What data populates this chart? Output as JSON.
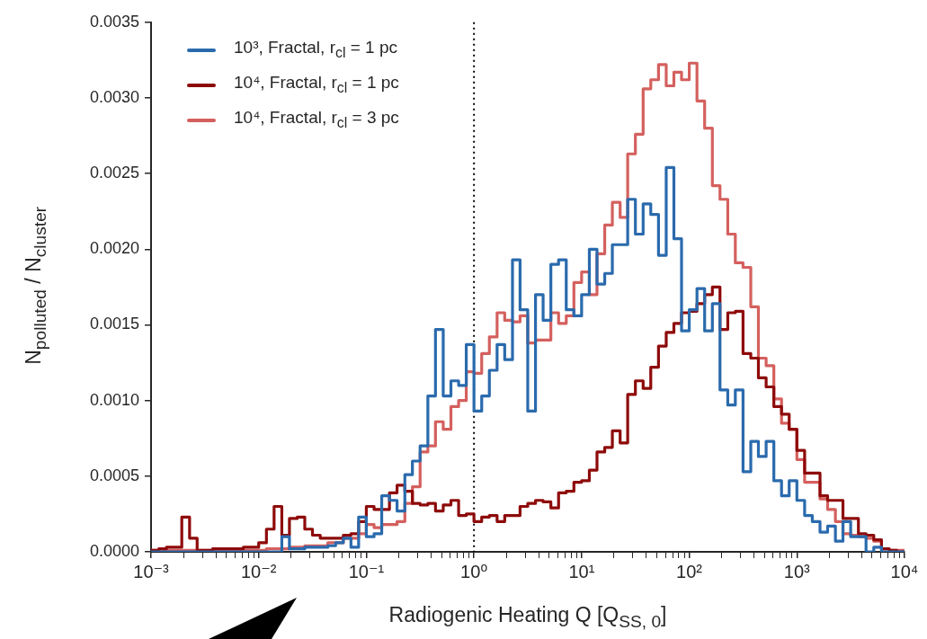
{
  "chart_data": {
    "type": "histogram",
    "xlabel": "Radiogenic Heating Q [Q$_{SS, 0}$]",
    "ylabel": "N$_{polluted}$ / N$_{cluster}$",
    "log": "x",
    "legend": "top left",
    "xlim": [
      0.001,
      10000
    ],
    "ylim": [
      0,
      0.0035
    ],
    "xticks": [
      {
        "value": 0.001,
        "label": "10⁻³"
      },
      {
        "value": 0.01,
        "label": "10⁻²"
      },
      {
        "value": 0.1,
        "label": "10⁻¹"
      },
      {
        "value": 1,
        "label": "10⁰"
      },
      {
        "value": 10,
        "label": "10¹"
      },
      {
        "value": 100,
        "label": "10²"
      },
      {
        "value": 1000,
        "label": "10³"
      },
      {
        "value": 10000,
        "label": "10⁴"
      },
      {
        "value": 0.002,
        "label": null
      },
      {
        "value": 0.003,
        "label": null
      },
      {
        "value": 0.004,
        "label": null
      },
      {
        "value": 0.005,
        "label": null
      },
      {
        "value": 0.006,
        "label": null
      },
      {
        "value": 0.007,
        "label": null
      },
      {
        "value": 0.008,
        "label": null
      },
      {
        "value": 0.009,
        "label": null
      },
      {
        "value": 0.02,
        "label": null
      },
      {
        "value": 0.03,
        "label": null
      },
      {
        "value": 0.04,
        "label": null
      },
      {
        "value": 0.05,
        "label": null
      },
      {
        "value": 0.06,
        "label": null
      },
      {
        "value": 0.07,
        "label": null
      },
      {
        "value": 0.08,
        "label": null
      },
      {
        "value": 0.09,
        "label": null
      },
      {
        "value": 0.2,
        "label": null
      },
      {
        "value": 0.3,
        "label": null
      },
      {
        "value": 0.4,
        "label": null
      },
      {
        "value": 0.5,
        "label": null
      },
      {
        "value": 0.6,
        "label": null
      },
      {
        "value": 0.7,
        "label": null
      },
      {
        "value": 0.8,
        "label": null
      },
      {
        "value": 0.9,
        "label": null
      },
      {
        "value": 2,
        "label": null
      },
      {
        "value": 3,
        "label": null
      },
      {
        "value": 4,
        "label": null
      },
      {
        "value": 5,
        "label": null
      },
      {
        "value": 6,
        "label": null
      },
      {
        "value": 7,
        "label": null
      },
      {
        "value": 8,
        "label": null
      },
      {
        "value": 9,
        "label": null
      },
      {
        "value": 20,
        "label": null
      },
      {
        "value": 30,
        "label": null
      },
      {
        "value": 40,
        "label": null
      },
      {
        "value": 50,
        "label": null
      },
      {
        "value": 60,
        "label": null
      },
      {
        "value": 70,
        "label": null
      },
      {
        "value": 80,
        "label": null
      },
      {
        "value": 90,
        "label": null
      },
      {
        "value": 200,
        "label": null
      },
      {
        "value": 300,
        "label": null
      },
      {
        "value": 400,
        "label": null
      },
      {
        "value": 500,
        "label": null
      },
      {
        "value": 600,
        "label": null
      },
      {
        "value": 700,
        "label": null
      },
      {
        "value": 800,
        "label": null
      },
      {
        "value": 900,
        "label": null
      },
      {
        "value": 2000,
        "label": null
      },
      {
        "value": 3000,
        "label": null
      },
      {
        "value": 4000,
        "label": null
      },
      {
        "value": 5000,
        "label": null
      },
      {
        "value": 6000,
        "label": null
      },
      {
        "value": 7000,
        "label": null
      },
      {
        "value": 8000,
        "label": null
      },
      {
        "value": 9000,
        "label": null
      }
    ],
    "yticks": [
      {
        "value": 0,
        "label": "0.0000"
      },
      {
        "value": 0.0005,
        "label": "0.0005"
      },
      {
        "value": 0.001,
        "label": "0.0010"
      },
      {
        "value": 0.0015,
        "label": "0.0015"
      },
      {
        "value": 0.002,
        "label": "0.0020"
      },
      {
        "value": 0.0025,
        "label": "0.0025"
      },
      {
        "value": 0.003,
        "label": "0.0030"
      },
      {
        "value": 0.0035,
        "label": "0.0035"
      }
    ],
    "ref_lines": [
      {
        "axis": "x",
        "value": 1,
        "color": "#000000",
        "line_style": "dotted"
      }
    ],
    "bins": [
      0.001,
      0.00118,
      0.00139,
      0.00164,
      0.00193,
      0.00228,
      0.00268,
      0.00316,
      0.00373,
      0.00439,
      0.00518,
      0.00611,
      0.0072,
      0.00848,
      0.01,
      0.0118,
      0.0139,
      0.0164,
      0.0193,
      0.0228,
      0.0268,
      0.0316,
      0.0373,
      0.0439,
      0.0518,
      0.0611,
      0.072,
      0.0848,
      0.1,
      0.118,
      0.139,
      0.164,
      0.193,
      0.228,
      0.268,
      0.316,
      0.373,
      0.439,
      0.518,
      0.611,
      0.72,
      0.848,
      1,
      1.18,
      1.39,
      1.64,
      1.93,
      2.28,
      2.68,
      3.16,
      3.73,
      4.39,
      5.18,
      6.11,
      7.2,
      8.48,
      10,
      11.8,
      13.9,
      16.4,
      19.3,
      22.8,
      26.8,
      31.6,
      37.3,
      43.9,
      51.8,
      61.1,
      72,
      84.8,
      100,
      118,
      139,
      164,
      193,
      228,
      268,
      316,
      373,
      439,
      518,
      611,
      720,
      848,
      1000,
      1180,
      1390,
      1640,
      1930,
      2280,
      2680,
      3160,
      3730,
      4390,
      5180,
      6110,
      7200,
      8480,
      10000
    ],
    "series": [
      {
        "name": "10³, Fractal, r$_{cl}$ = 1 pc",
        "color": "#2a6aad",
        "values": [
          0,
          0,
          0,
          0,
          0,
          0,
          0,
          0,
          0,
          0,
          0,
          0,
          0,
          0,
          0,
          0,
          0,
          0.0001,
          2e-05,
          2e-05,
          3e-05,
          3e-05,
          3e-05,
          4e-05,
          6e-05,
          9e-05,
          3e-05,
          0.00023,
          0.0001,
          0.00012,
          0.00037,
          0.00034,
          0.00027,
          0.00051,
          0.0006,
          0.0007,
          0.00103,
          0.00147,
          0.00103,
          0.00113,
          0.0011,
          0.00137,
          0.00093,
          0.00103,
          0.0012,
          0.00137,
          0.00127,
          0.00193,
          0.0016,
          0.00093,
          0.0017,
          0.00153,
          0.0019,
          0.00193,
          0.0016,
          0.00156,
          0.0017,
          0.002,
          0.00177,
          0.00184,
          0.00203,
          0.00203,
          0.00233,
          0.0021,
          0.0023,
          0.00223,
          0.00196,
          0.00254,
          0.00207,
          0.00146,
          0.0016,
          0.00174,
          0.00146,
          0.00164,
          0.00107,
          0.00097,
          0.00107,
          0.00053,
          0.00073,
          0.00063,
          0.00073,
          0.00047,
          0.00037,
          0.00047,
          0.00034,
          0.00024,
          0.0002,
          0.00013,
          0.00017,
          7e-05,
          0.0002,
          0.0001,
          0.0001,
          0,
          3e-05,
          0,
          0,
          0
        ]
      },
      {
        "name": "10⁴, Fractal, r$_{cl}$ = 1 pc",
        "color": "#8e0a0a",
        "values": [
          1e-05,
          2e-05,
          3e-05,
          3e-05,
          0.00023,
          9e-05,
          1e-05,
          1e-05,
          2e-05,
          2e-05,
          2e-05,
          2e-05,
          3e-05,
          3e-05,
          6e-05,
          0.00015,
          0.0003,
          0.00011,
          0.00022,
          0.00023,
          0.00015,
          0.00011,
          9e-05,
          9e-05,
          9e-05,
          0.00011,
          0.00012,
          0.0002,
          0.0003,
          0.00028,
          0.00028,
          0.00039,
          0.00044,
          0.0004,
          0.00032,
          0.00031,
          0.00032,
          0.00027,
          0.00031,
          0.00034,
          0.00024,
          0.00025,
          0.0002,
          0.00023,
          0.00024,
          0.0002,
          0.00024,
          0.00024,
          0.0003,
          0.00032,
          0.00034,
          0.00033,
          0.00029,
          0.00039,
          0.0004,
          0.00046,
          0.00047,
          0.00054,
          0.00066,
          0.00069,
          0.0008,
          0.00072,
          0.00104,
          0.00113,
          0.00108,
          0.00122,
          0.00136,
          0.00145,
          0.00151,
          0.00158,
          0.00159,
          0.00164,
          0.0017,
          0.00175,
          0.00147,
          0.00158,
          0.00159,
          0.00131,
          0.00128,
          0.00115,
          0.00109,
          0.00096,
          0.00091,
          0.00081,
          0.00067,
          0.00052,
          0.00052,
          0.00037,
          0.00034,
          0.00034,
          0.00022,
          0.00022,
          0.00012,
          0.00011,
          8e-05,
          2e-05,
          1e-05,
          0
        ]
      },
      {
        "name": "10⁴, Fractal, r$_{cl}$ = 3 pc",
        "color": "#d4605e",
        "values": [
          1e-05,
          1e-05,
          1e-05,
          1e-05,
          1e-05,
          1e-05,
          1e-05,
          1e-05,
          1e-05,
          1e-05,
          1e-05,
          1e-05,
          1e-05,
          1e-05,
          1e-05,
          2e-05,
          2e-05,
          2e-05,
          3e-05,
          3e-05,
          4e-05,
          4e-05,
          4e-05,
          6e-05,
          6e-05,
          9e-05,
          9e-05,
          0.00012,
          0.00018,
          0.00016,
          0.00018,
          0.00018,
          0.0002,
          0.00032,
          0.00043,
          0.00066,
          0.0007,
          0.00086,
          0.00081,
          0.00096,
          0.001,
          0.00119,
          0.00118,
          0.00131,
          0.00142,
          0.00158,
          0.00153,
          0.00152,
          0.00156,
          0.00138,
          0.0014,
          0.0014,
          0.00158,
          0.00151,
          0.00156,
          0.00178,
          0.00185,
          0.0017,
          0.00197,
          0.00216,
          0.00231,
          0.00221,
          0.00263,
          0.00276,
          0.00306,
          0.00312,
          0.00322,
          0.00308,
          0.00317,
          0.00312,
          0.00323,
          0.00298,
          0.0028,
          0.00242,
          0.00233,
          0.0021,
          0.00191,
          0.00188,
          0.00162,
          0.00128,
          0.00123,
          0.00101,
          0.00085,
          0.00081,
          0.00061,
          0.00046,
          0.00046,
          0.00035,
          0.00028,
          0.0002,
          0.00012,
          0.00011,
          0.0001,
          9e-05,
          7e-05,
          2e-05,
          1e-05,
          1e-05
        ]
      }
    ]
  }
}
